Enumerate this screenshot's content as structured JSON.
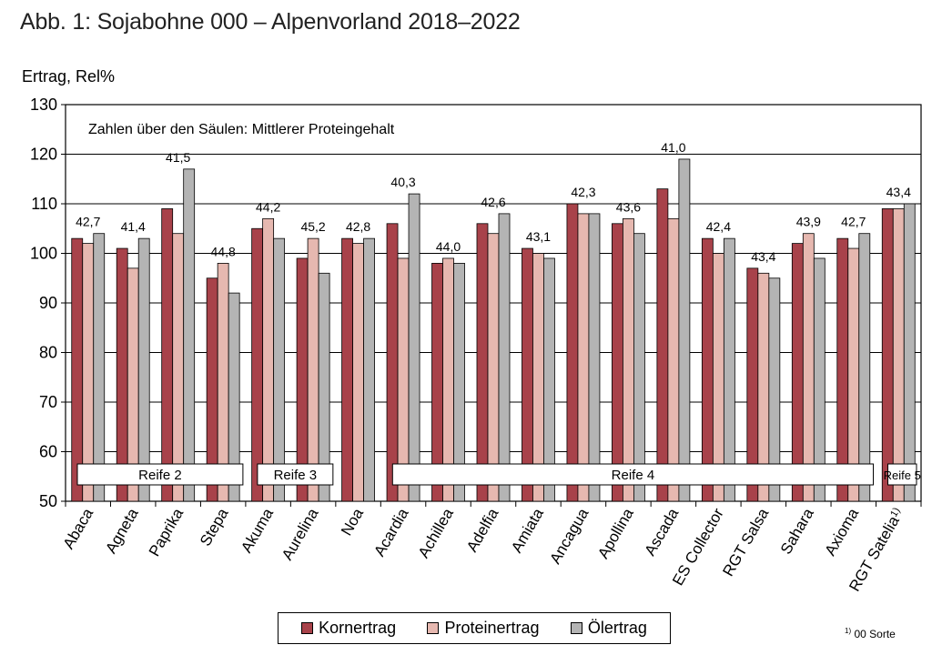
{
  "figure_title": "Abb. 1: Sojabohne 000 – Alpenvorland 2018–2022",
  "footnote": {
    "mark": "1)",
    "text": "00 Sorte"
  },
  "chart_data": {
    "type": "bar",
    "title": "Abb. 1: Sojabohne 000 – Alpenvorland 2018–2022",
    "ylabel": "Ertrag, Rel%",
    "xlabel": "",
    "ylim": [
      50,
      130
    ],
    "yticks": [
      50,
      60,
      70,
      80,
      90,
      100,
      110,
      120,
      130
    ],
    "grid": true,
    "annotation": "Zahlen über den Säulen: Mittlerer Proteingehalt",
    "categories": [
      "Abaca",
      "Agneta",
      "Paprika",
      "Stepa",
      "Akuma",
      "Aurelina",
      "Noa",
      "Acardia",
      "Achillea",
      "Adelfia",
      "Amiata",
      "Ancagua",
      "Apollina",
      "Ascada",
      "ES Collector",
      "RGT Salsa",
      "Sahara",
      "Axioma",
      "RGT Satelia"
    ],
    "category_footnote": {
      "RGT Satelia": "1)"
    },
    "series": [
      {
        "name": "Kornertrag",
        "color": "#A8424A",
        "values": [
          103,
          101,
          109,
          95,
          105,
          99,
          103,
          106,
          98,
          106,
          101,
          110,
          106,
          113,
          103,
          97,
          102,
          103,
          109
        ]
      },
      {
        "name": "Proteinertrag",
        "color": "#E6B8B0",
        "values": [
          102,
          97,
          104,
          98,
          107,
          103,
          102,
          99,
          99,
          104,
          100,
          108,
          107,
          107,
          100,
          96,
          104,
          101,
          109
        ]
      },
      {
        "name": "Ölertrag",
        "color": "#B4B4B4",
        "values": [
          104,
          103,
          117,
          92,
          103,
          96,
          103,
          112,
          98,
          108,
          99,
          108,
          104,
          119,
          103,
          95,
          99,
          104,
          110
        ]
      }
    ],
    "protein_labels": [
      "42,7",
      "41,4",
      "41,5",
      "44,8",
      "44,2",
      "45,2",
      "42,8",
      "40,3",
      "44,0",
      "42,6",
      "43,1",
      "42,3",
      "43,6",
      "41,0",
      "42,4",
      "43,4",
      "43,9",
      "42,7",
      "43,4"
    ],
    "maturity_groups": [
      {
        "label": "Reife 2",
        "from": 0,
        "to": 3
      },
      {
        "label": "Reife 3",
        "from": 4,
        "to": 5
      },
      {
        "label": "Reife 4",
        "from": 7,
        "to": 17
      },
      {
        "label": "Reife 5",
        "from": 18,
        "to": 18
      }
    ]
  }
}
